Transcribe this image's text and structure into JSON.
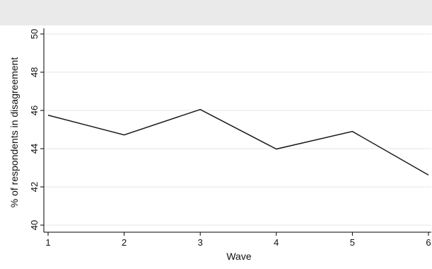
{
  "chart_data": {
    "type": "line",
    "title": "",
    "xlabel": "Wave",
    "ylabel": "% of respondents in disagreement",
    "x": [
      1,
      2,
      3,
      4,
      5,
      6
    ],
    "xticks": [
      "1",
      "2",
      "3",
      "4",
      "5",
      "6"
    ],
    "yticks": [
      "40",
      "42",
      "44",
      "46",
      "48",
      "50"
    ],
    "series": [
      {
        "values": [
          45.75,
          44.72,
          46.05,
          43.98,
          44.9,
          42.62
        ]
      }
    ],
    "xlim": [
      1,
      6
    ],
    "ylim": [
      40,
      50
    ],
    "grid": "horizontal",
    "legend": "none",
    "colors": {
      "line": "#1a1a1a",
      "plot_bg": "#ffffff",
      "outer_bg": "#eaeaea",
      "grid": "#e6e6e6",
      "axis": "#000000"
    }
  }
}
